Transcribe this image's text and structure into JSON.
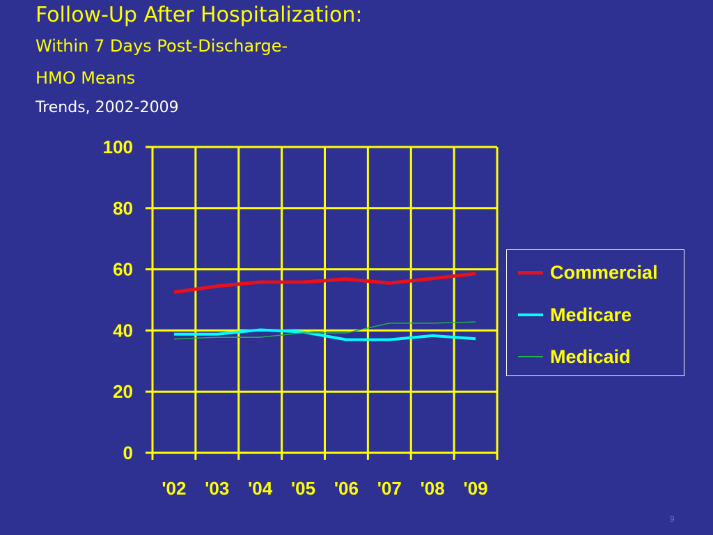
{
  "slide": {
    "title": "Follow-Up After Hospitalization:",
    "subtitle1": "Within 7 Days Post-Discharge-",
    "subtitle2": "HMO Means",
    "subtitle3": "Trends, 2002-2009",
    "page_number": "9"
  },
  "colors": {
    "background": "#2E3192",
    "title": "#FFFF00",
    "grid": "#FFFF00",
    "commercial": "#E8101A",
    "medicare": "#00FFFF",
    "medicaid": "#22B14C"
  },
  "chart_data": {
    "type": "line",
    "categories": [
      "'02",
      "'03",
      "'04",
      "'05",
      "'06",
      "'07",
      "'08",
      "'09"
    ],
    "ylim": [
      0,
      100
    ],
    "yticks": [
      "0",
      "20",
      "40",
      "60",
      "80",
      "100"
    ],
    "grid": true,
    "legend_position": "right",
    "series": [
      {
        "name": "Commercial",
        "values": [
          52.5,
          54.5,
          55.8,
          55.8,
          56.8,
          55.5,
          57.0,
          58.6
        ],
        "color": "#E8101A"
      },
      {
        "name": "Medicare",
        "values": [
          38.8,
          38.8,
          40.2,
          39.5,
          37.0,
          37.0,
          38.3,
          37.3
        ],
        "color": "#00FFFF"
      },
      {
        "name": "Medicaid",
        "values": [
          37.2,
          37.8,
          37.8,
          39.2,
          39.2,
          42.4,
          42.4,
          42.8
        ],
        "color": "#22B14C"
      }
    ]
  }
}
